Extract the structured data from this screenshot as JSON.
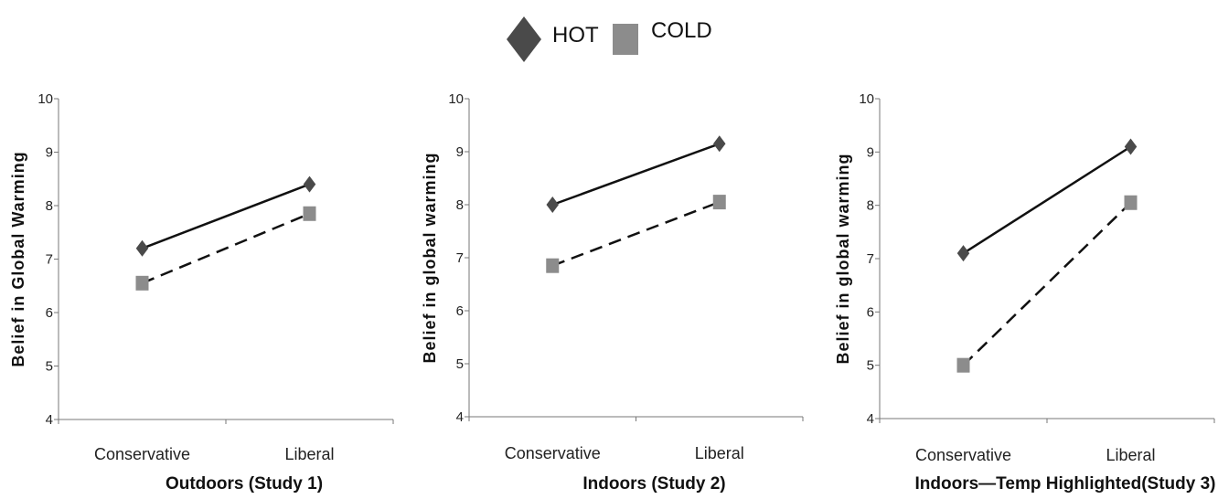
{
  "legend": {
    "items": [
      {
        "label": "HOT",
        "marker": "diamond",
        "color": "#4a4a4a"
      },
      {
        "label": "COLD",
        "marker": "square",
        "color": "#8c8c8c"
      }
    ]
  },
  "chart_data": [
    {
      "type": "line",
      "title": "Outdoors (Study 1)",
      "ylabel": "Belief in Global Warming",
      "xlabel": "",
      "categories": [
        "Conservative",
        "Liberal"
      ],
      "ylim": [
        4,
        10
      ],
      "yticks": [
        "4",
        "5",
        "6",
        "7",
        "8",
        "9",
        "10"
      ],
      "series": [
        {
          "name": "HOT",
          "values": [
            7.2,
            8.4
          ],
          "line": "solid",
          "marker": "diamond",
          "color": "#4a4a4a"
        },
        {
          "name": "COLD",
          "values": [
            6.55,
            7.85
          ],
          "line": "dashed",
          "marker": "square",
          "color": "#8c8c8c"
        }
      ]
    },
    {
      "type": "line",
      "title": "Indoors (Study 2)",
      "ylabel": "Belief in global warming",
      "xlabel": "",
      "categories": [
        "Conservative",
        "Liberal"
      ],
      "ylim": [
        4,
        10
      ],
      "yticks": [
        "4",
        "5",
        "6",
        "7",
        "8",
        "9",
        "10"
      ],
      "series": [
        {
          "name": "HOT",
          "values": [
            8.0,
            9.15
          ],
          "line": "solid",
          "marker": "diamond",
          "color": "#4a4a4a"
        },
        {
          "name": "COLD",
          "values": [
            6.85,
            8.05
          ],
          "line": "dashed",
          "marker": "square",
          "color": "#8c8c8c"
        }
      ]
    },
    {
      "type": "line",
      "title": "Indoors—Temp Highlighted(Study 3)",
      "ylabel": "Belief in global warming",
      "xlabel": "",
      "categories": [
        "Conservative",
        "Liberal"
      ],
      "ylim": [
        4,
        10
      ],
      "yticks": [
        "4",
        "5",
        "6",
        "7",
        "8",
        "9",
        "10"
      ],
      "series": [
        {
          "name": "HOT",
          "values": [
            7.1,
            9.1
          ],
          "line": "solid",
          "marker": "diamond",
          "color": "#4a4a4a"
        },
        {
          "name": "COLD",
          "values": [
            5.0,
            8.05
          ],
          "line": "dashed",
          "marker": "square",
          "color": "#8c8c8c"
        }
      ]
    }
  ]
}
